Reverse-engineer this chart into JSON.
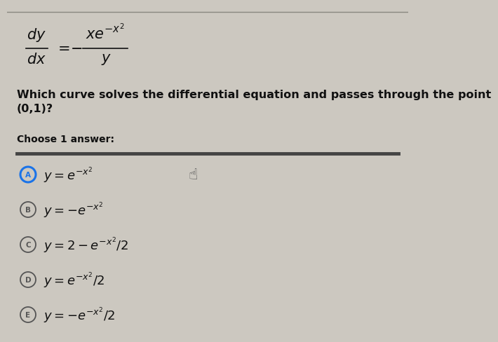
{
  "background_color": "#ccc8c0",
  "top_line_color": "#888880",
  "question": "Which curve solves the differential equation and passes through the point\n(0,1)?",
  "choose_text": "Choose 1 answer:",
  "options": [
    {
      "label": "A",
      "formula": "$y = e^{-x^2}$",
      "selected": true
    },
    {
      "label": "B",
      "formula": "$y = -e^{-x^2}$",
      "selected": false
    },
    {
      "label": "C",
      "formula": "$y = 2 - e^{-x^2}/2$",
      "selected": false
    },
    {
      "label": "D",
      "formula": "$y = e^{-x^2}/2$",
      "selected": false
    },
    {
      "label": "E",
      "formula": "$y = -e^{-x^2}/2$",
      "selected": false
    }
  ],
  "circle_color_selected": "#1a73e8",
  "circle_color_unselected": "#555555",
  "divider_color": "#444444",
  "text_color": "#111111",
  "question_fontsize": 11.5,
  "formula_fontsize": 13,
  "choose_fontsize": 10,
  "eq_fontsize": 15
}
